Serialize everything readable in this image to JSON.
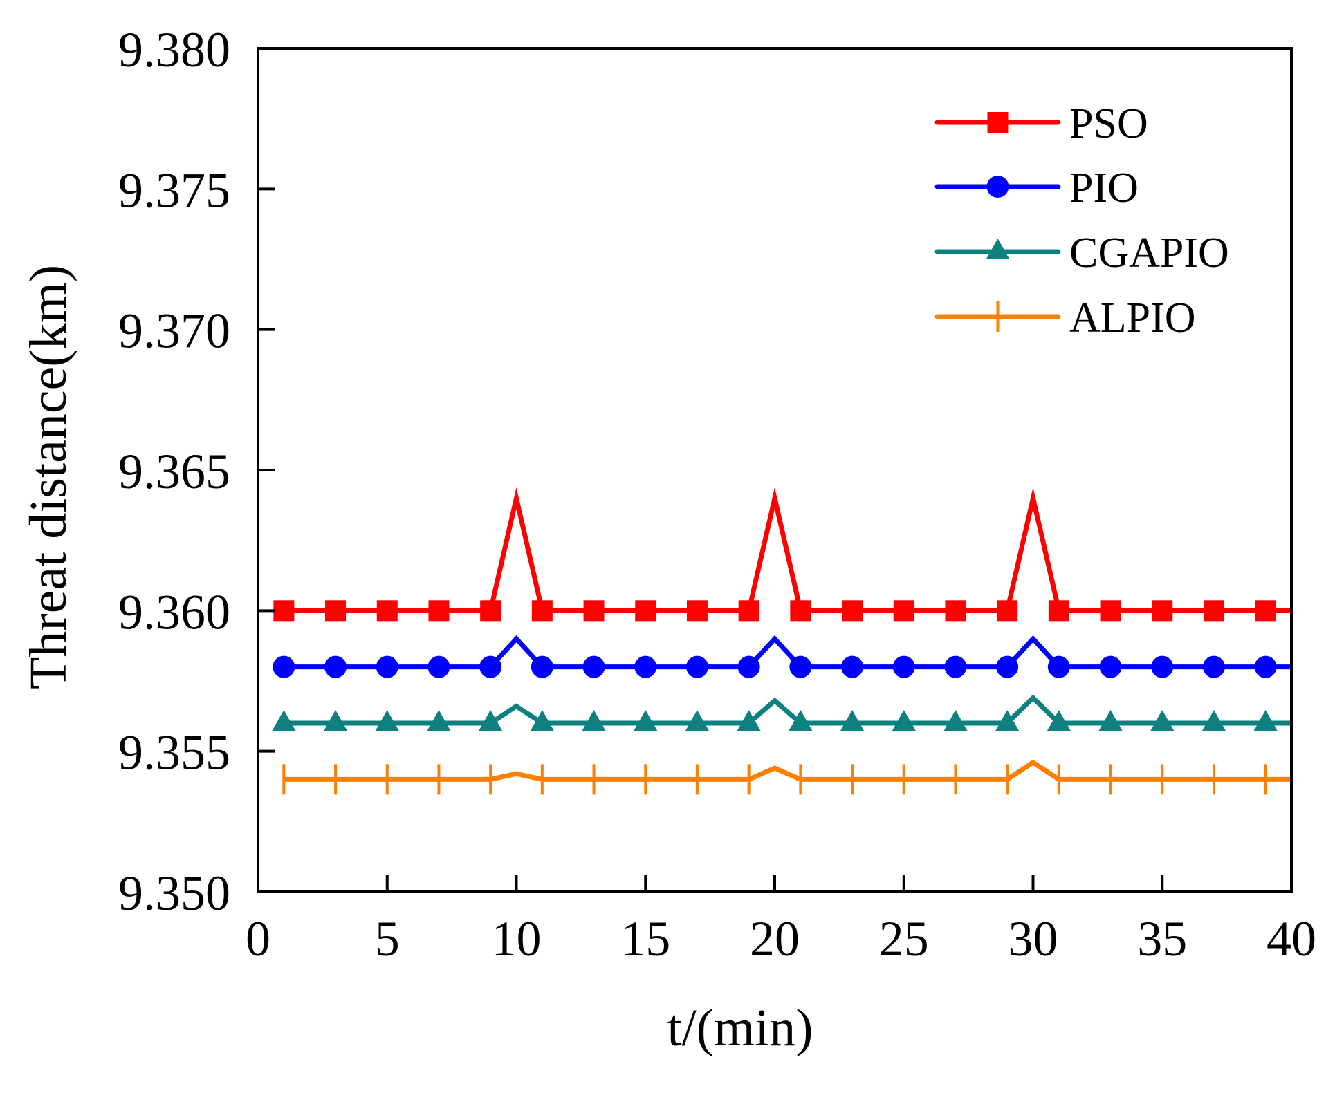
{
  "chart_data": {
    "type": "line",
    "title": "",
    "xlabel": "t/(min)",
    "ylabel": "Threat distance(km)",
    "xlim": [
      0,
      40
    ],
    "ylim": [
      9.35,
      9.38
    ],
    "xticks": [
      "0",
      "5",
      "10",
      "15",
      "20",
      "25",
      "30",
      "35",
      "40"
    ],
    "yticks": [
      "9.350",
      "9.355",
      "9.360",
      "9.365",
      "9.370",
      "9.375",
      "9.380"
    ],
    "grid": false,
    "legend_position": "top-right",
    "x": [
      1,
      3,
      5,
      7,
      9,
      10,
      11,
      13,
      15,
      17,
      19,
      20,
      21,
      23,
      25,
      27,
      29,
      30,
      31,
      33,
      35,
      37,
      39,
      40
    ],
    "series": [
      {
        "name": "PSO",
        "color": "#ff0000",
        "marker": "square",
        "values": [
          9.36,
          9.36,
          9.36,
          9.36,
          9.36,
          9.364,
          9.36,
          9.36,
          9.36,
          9.36,
          9.36,
          9.364,
          9.36,
          9.36,
          9.36,
          9.36,
          9.36,
          9.364,
          9.36,
          9.36,
          9.36,
          9.36,
          9.36,
          9.36
        ]
      },
      {
        "name": "PIO",
        "color": "#0000ff",
        "marker": "circle",
        "values": [
          9.358,
          9.358,
          9.358,
          9.358,
          9.358,
          9.359,
          9.358,
          9.358,
          9.358,
          9.358,
          9.358,
          9.359,
          9.358,
          9.358,
          9.358,
          9.358,
          9.358,
          9.359,
          9.358,
          9.358,
          9.358,
          9.358,
          9.358,
          9.358
        ]
      },
      {
        "name": "CGAPIO",
        "color": "#0e8080",
        "marker": "triangle",
        "values": [
          9.356,
          9.356,
          9.356,
          9.356,
          9.356,
          9.3566,
          9.356,
          9.356,
          9.356,
          9.356,
          9.356,
          9.3568,
          9.356,
          9.356,
          9.356,
          9.356,
          9.356,
          9.3569,
          9.356,
          9.356,
          9.356,
          9.356,
          9.356,
          9.356
        ]
      },
      {
        "name": "ALPIO",
        "color": "#ff8000",
        "marker": "plus",
        "values": [
          9.354,
          9.354,
          9.354,
          9.354,
          9.354,
          9.3542,
          9.354,
          9.354,
          9.354,
          9.354,
          9.354,
          9.3544,
          9.354,
          9.354,
          9.354,
          9.354,
          9.354,
          9.3546,
          9.354,
          9.354,
          9.354,
          9.354,
          9.354,
          9.354
        ]
      }
    ]
  }
}
